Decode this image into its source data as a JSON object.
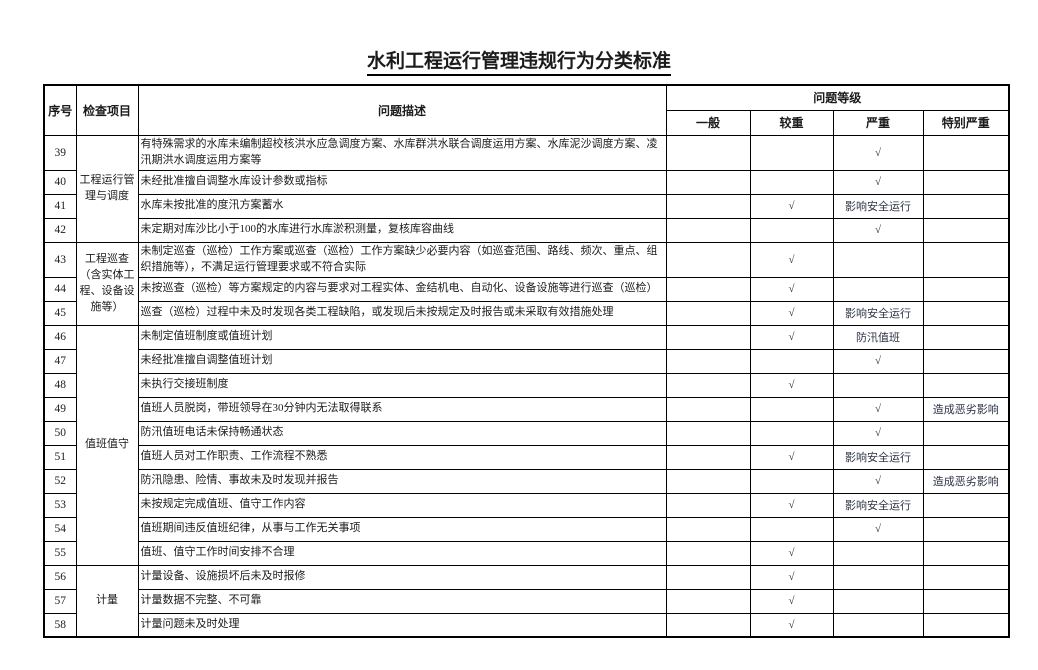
{
  "title": "水利工程运行管理违规行为分类标准",
  "colors": {
    "background": "#ffffff",
    "ink": "#1b1b1b",
    "border": "#000000",
    "checkmark": "#2e3447"
  },
  "table": {
    "headers": {
      "seq": "序号",
      "category": "检查项目",
      "description": "问题描述",
      "level_group": "问题等级",
      "levels": [
        "一般",
        "较重",
        "严重",
        "特别严重"
      ]
    },
    "categories": [
      {
        "label": "工程运行管理与调度",
        "start": 0,
        "rowspan": 4
      },
      {
        "label": "工程巡查（含实体工程、设备设施等）",
        "start": 4,
        "rowspan": 3
      },
      {
        "label": "值班值守",
        "start": 7,
        "rowspan": 10
      },
      {
        "label": "计量",
        "start": 17,
        "rowspan": 3
      }
    ],
    "rows": [
      {
        "seq": "39",
        "desc": "有特殊需求的水库未编制超校核洪水应急调度方案、水库群洪水联合调度运用方案、水库泥沙调度方案、凌汛期洪水调度运用方案等",
        "levels": [
          "",
          "",
          "√",
          ""
        ]
      },
      {
        "seq": "40",
        "desc": "未经批准擅自调整水库设计参数或指标",
        "levels": [
          "",
          "",
          "√",
          ""
        ]
      },
      {
        "seq": "41",
        "desc": "水库未按批准的度汛方案蓄水",
        "levels": [
          "",
          "√",
          "影响安全运行",
          ""
        ]
      },
      {
        "seq": "42",
        "desc": "未定期对库沙比小于100的水库进行水库淤积测量，复核库容曲线",
        "levels": [
          "",
          "",
          "√",
          ""
        ]
      },
      {
        "seq": "43",
        "desc": "未制定巡查（巡检）工作方案或巡查（巡检）工作方案缺少必要内容（如巡查范围、路线、频次、重点、组织措施等），不满足运行管理要求或不符合实际",
        "levels": [
          "",
          "√",
          "",
          ""
        ]
      },
      {
        "seq": "44",
        "desc": "未按巡查（巡检）等方案规定的内容与要求对工程实体、金结机电、自动化、设备设施等进行巡查（巡检）",
        "levels": [
          "",
          "√",
          "",
          ""
        ]
      },
      {
        "seq": "45",
        "desc": "巡查（巡检）过程中未及时发现各类工程缺陷，或发现后未按规定及时报告或未采取有效措施处理",
        "levels": [
          "",
          "√",
          "影响安全运行",
          ""
        ]
      },
      {
        "seq": "46",
        "desc": "未制定值班制度或值班计划",
        "levels": [
          "",
          "√",
          "防汛值班",
          ""
        ]
      },
      {
        "seq": "47",
        "desc": "未经批准擅自调整值班计划",
        "levels": [
          "",
          "",
          "√",
          ""
        ]
      },
      {
        "seq": "48",
        "desc": "未执行交接班制度",
        "levels": [
          "",
          "√",
          "",
          ""
        ]
      },
      {
        "seq": "49",
        "desc": "值班人员脱岗，带班领导在30分钟内无法取得联系",
        "levels": [
          "",
          "",
          "√",
          "造成恶劣影响"
        ]
      },
      {
        "seq": "50",
        "desc": "防汛值班电话未保持畅通状态",
        "levels": [
          "",
          "",
          "√",
          ""
        ]
      },
      {
        "seq": "51",
        "desc": "值班人员对工作职责、工作流程不熟悉",
        "levels": [
          "",
          "√",
          "影响安全运行",
          ""
        ]
      },
      {
        "seq": "52",
        "desc": "防汛隐患、险情、事故未及时发现并报告",
        "levels": [
          "",
          "",
          "√",
          "造成恶劣影响"
        ]
      },
      {
        "seq": "53",
        "desc": "未按规定完成值班、值守工作内容",
        "levels": [
          "",
          "√",
          "影响安全运行",
          ""
        ]
      },
      {
        "seq": "54",
        "desc": "值班期间违反值班纪律，从事与工作无关事项",
        "levels": [
          "",
          "",
          "√",
          ""
        ]
      },
      {
        "seq": "55",
        "desc": "值班、值守工作时间安排不合理",
        "levels": [
          "",
          "√",
          "",
          ""
        ]
      },
      {
        "seq": "56",
        "desc": "计量设备、设施损坏后未及时报修",
        "levels": [
          "",
          "√",
          "",
          ""
        ]
      },
      {
        "seq": "57",
        "desc": "计量数据不完整、不可靠",
        "levels": [
          "",
          "√",
          "",
          ""
        ]
      },
      {
        "seq": "58",
        "desc": "计量问题未及时处理",
        "levels": [
          "",
          "√",
          "",
          ""
        ]
      }
    ]
  }
}
